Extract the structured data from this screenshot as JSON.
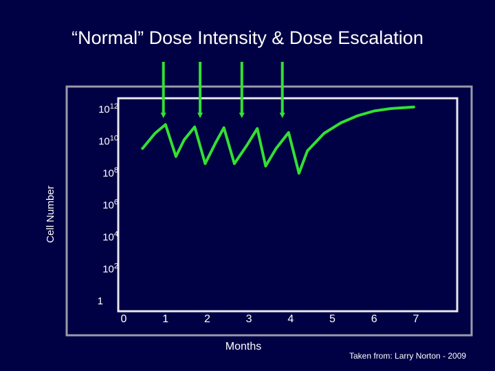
{
  "slide": {
    "title": "“Normal” Dose Intensity & Dose Escalation",
    "credit": "Taken from: Larry Norton - 2009"
  },
  "colors": {
    "background": "#000044",
    "frame": "#e8e8ee",
    "curve": "#33e033",
    "arrow": "#33e033",
    "text": "#ffffff"
  },
  "chart_data": {
    "type": "line",
    "title": "",
    "xlabel": "Months",
    "ylabel": "Cell Number",
    "x_ticks": [
      "0",
      "1",
      "2",
      "3",
      "4",
      "5",
      "6",
      "7"
    ],
    "y_ticks": [
      {
        "base": "10",
        "exp": "12",
        "value": 12
      },
      {
        "base": "10",
        "exp": "10",
        "value": 10
      },
      {
        "base": "10",
        "exp": "8",
        "value": 8
      },
      {
        "base": "10",
        "exp": "6",
        "value": 6
      },
      {
        "base": "10",
        "exp": "4",
        "value": 4
      },
      {
        "base": "10",
        "exp": "2",
        "value": 2
      },
      {
        "base": "1",
        "exp": "",
        "value": 0
      }
    ],
    "y_scale": "log10",
    "xlim": [
      0,
      7
    ],
    "ylim": [
      0,
      12
    ],
    "grid": false,
    "series": [
      {
        "x": [
          0.45,
          0.75,
          1.0,
          1.25,
          1.45,
          1.7,
          1.95,
          2.2,
          2.4,
          2.65,
          2.95,
          3.2,
          3.4,
          3.65,
          3.95,
          4.2,
          4.4,
          4.8,
          5.2,
          5.6,
          6.0,
          6.4,
          6.95
        ],
        "y": [
          9.5,
          10.45,
          11.0,
          9.0,
          10.05,
          10.85,
          8.55,
          9.85,
          10.8,
          8.55,
          9.7,
          10.75,
          8.4,
          9.5,
          10.5,
          7.95,
          9.35,
          10.45,
          11.1,
          11.55,
          11.85,
          12.0,
          12.1
        ]
      }
    ],
    "dose_arrows_x": [
      0.95,
      1.83,
      2.83,
      3.8
    ]
  }
}
